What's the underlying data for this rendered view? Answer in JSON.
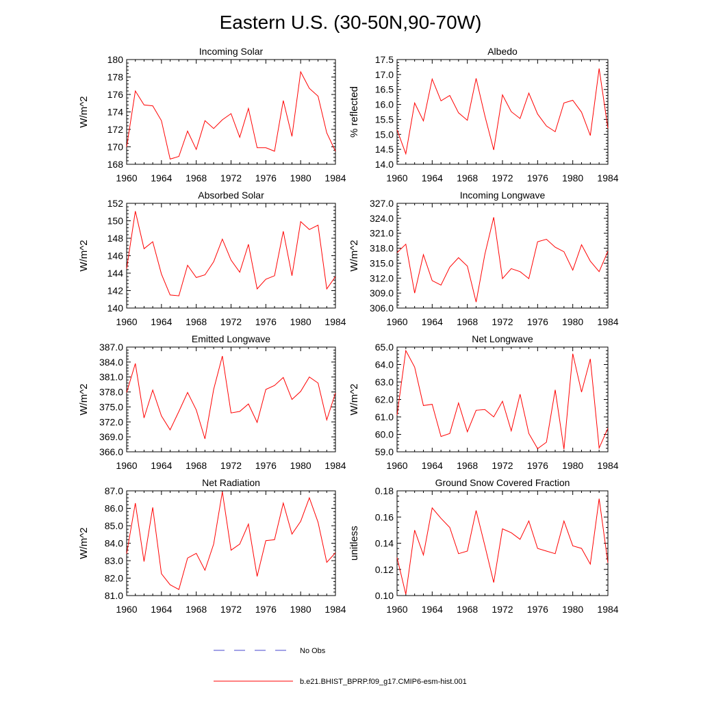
{
  "page_title": "Eastern U.S. (30-50N,90-70W)",
  "colors": {
    "series": "#ff0000",
    "obs": "#4444cc",
    "axis": "#000000"
  },
  "chart_data": [
    {
      "type": "line",
      "title": "Incoming Solar",
      "xlabel": "",
      "ylabel": "W/m^2",
      "xlim": [
        1960,
        1984
      ],
      "ylim": [
        168,
        180
      ],
      "x_ticks": [
        "1960",
        "1964",
        "1968",
        "1972",
        "1976",
        "1980",
        "1984"
      ],
      "y_ticks": [
        "168",
        "170",
        "172",
        "174",
        "176",
        "178",
        "180"
      ],
      "x": [
        1960,
        1961,
        1962,
        1963,
        1964,
        1965,
        1966,
        1967,
        1968,
        1969,
        1970,
        1971,
        1972,
        1973,
        1974,
        1975,
        1976,
        1977,
        1978,
        1979,
        1980,
        1981,
        1982,
        1983,
        1984
      ],
      "values": [
        170.0,
        176.4,
        174.8,
        174.7,
        173.0,
        168.6,
        168.9,
        171.8,
        169.7,
        173.0,
        172.1,
        173.1,
        173.8,
        171.1,
        174.4,
        169.9,
        169.9,
        169.5,
        175.3,
        171.2,
        178.6,
        176.7,
        175.8,
        171.6,
        169.5
      ]
    },
    {
      "type": "line",
      "title": "Albedo",
      "xlabel": "",
      "ylabel": "% reflected",
      "xlim": [
        1960,
        1984
      ],
      "ylim": [
        14.0,
        17.5
      ],
      "x_ticks": [
        "1960",
        "1964",
        "1968",
        "1972",
        "1976",
        "1980",
        "1984"
      ],
      "y_ticks": [
        "14.0",
        "14.5",
        "15.0",
        "15.5",
        "16.0",
        "16.5",
        "17.0",
        "17.5"
      ],
      "x": [
        1960,
        1961,
        1962,
        1963,
        1964,
        1965,
        1966,
        1967,
        1968,
        1969,
        1970,
        1971,
        1972,
        1973,
        1974,
        1975,
        1976,
        1977,
        1978,
        1979,
        1980,
        1981,
        1982,
        1983,
        1984
      ],
      "values": [
        15.15,
        14.35,
        16.05,
        15.45,
        16.85,
        16.12,
        16.3,
        15.72,
        15.47,
        16.87,
        15.62,
        14.48,
        16.32,
        15.76,
        15.53,
        16.38,
        15.68,
        15.28,
        15.09,
        16.05,
        16.14,
        15.74,
        14.96,
        17.2,
        15.2
      ]
    },
    {
      "type": "line",
      "title": "Absorbed Solar",
      "xlabel": "",
      "ylabel": "W/m^2",
      "xlim": [
        1960,
        1984
      ],
      "ylim": [
        140,
        152
      ],
      "x_ticks": [
        "1960",
        "1964",
        "1968",
        "1972",
        "1976",
        "1980",
        "1984"
      ],
      "y_ticks": [
        "140",
        "142",
        "144",
        "146",
        "148",
        "150",
        "152"
      ],
      "x": [
        1960,
        1961,
        1962,
        1963,
        1964,
        1965,
        1966,
        1967,
        1968,
        1969,
        1970,
        1971,
        1972,
        1973,
        1974,
        1975,
        1976,
        1977,
        1978,
        1979,
        1980,
        1981,
        1982,
        1983,
        1984
      ],
      "values": [
        144.5,
        151.1,
        146.8,
        147.6,
        143.9,
        141.5,
        141.4,
        144.9,
        143.5,
        143.8,
        145.3,
        147.9,
        145.5,
        144.1,
        147.3,
        142.2,
        143.3,
        143.7,
        148.8,
        143.7,
        149.9,
        149.0,
        149.5,
        142.2,
        143.6
      ]
    },
    {
      "type": "line",
      "title": "Incoming Longwave",
      "xlabel": "",
      "ylabel": "W/m^2",
      "xlim": [
        1960,
        1984
      ],
      "ylim": [
        306.0,
        327.0
      ],
      "x_ticks": [
        "1960",
        "1964",
        "1968",
        "1972",
        "1976",
        "1980",
        "1984"
      ],
      "y_ticks": [
        "306.0",
        "309.0",
        "312.0",
        "315.0",
        "318.0",
        "321.0",
        "324.0",
        "327.0"
      ],
      "x": [
        1960,
        1961,
        1962,
        1963,
        1964,
        1965,
        1966,
        1967,
        1968,
        1969,
        1970,
        1971,
        1972,
        1973,
        1974,
        1975,
        1976,
        1977,
        1978,
        1979,
        1980,
        1981,
        1982,
        1983,
        1984
      ],
      "values": [
        317.1,
        318.8,
        309.0,
        316.7,
        311.5,
        310.6,
        314.2,
        316.1,
        314.4,
        307.2,
        316.8,
        324.2,
        311.9,
        313.9,
        313.3,
        311.9,
        319.3,
        319.8,
        318.2,
        317.3,
        313.6,
        318.7,
        315.4,
        313.3,
        317.4
      ]
    },
    {
      "type": "line",
      "title": "Emitted Longwave",
      "xlabel": "",
      "ylabel": "W/m^2",
      "xlim": [
        1960,
        1984
      ],
      "ylim": [
        366.0,
        387.0
      ],
      "x_ticks": [
        "1960",
        "1964",
        "1968",
        "1972",
        "1976",
        "1980",
        "1984"
      ],
      "y_ticks": [
        "366.0",
        "369.0",
        "372.0",
        "375.0",
        "378.0",
        "381.0",
        "384.0",
        "387.0"
      ],
      "x": [
        1960,
        1961,
        1962,
        1963,
        1964,
        1965,
        1966,
        1967,
        1968,
        1969,
        1970,
        1971,
        1972,
        1973,
        1974,
        1975,
        1976,
        1977,
        1978,
        1979,
        1980,
        1981,
        1982,
        1983,
        1984
      ],
      "values": [
        377.9,
        383.7,
        372.8,
        378.4,
        373.2,
        370.4,
        374.1,
        377.9,
        374.4,
        368.6,
        378.5,
        385.2,
        373.8,
        374.1,
        375.6,
        371.9,
        378.5,
        379.3,
        380.9,
        376.5,
        378.1,
        381.0,
        379.8,
        372.4,
        377.8
      ]
    },
    {
      "type": "line",
      "title": "Net Longwave",
      "xlabel": "",
      "ylabel": "W/m^2",
      "xlim": [
        1960,
        1984
      ],
      "ylim": [
        59.0,
        65.0
      ],
      "x_ticks": [
        "1960",
        "1964",
        "1968",
        "1972",
        "1976",
        "1980",
        "1984"
      ],
      "y_ticks": [
        "59.0",
        "60.0",
        "61.0",
        "62.0",
        "63.0",
        "64.0",
        "65.0"
      ],
      "x": [
        1960,
        1961,
        1962,
        1963,
        1964,
        1965,
        1966,
        1967,
        1968,
        1969,
        1970,
        1971,
        1972,
        1973,
        1974,
        1975,
        1976,
        1977,
        1978,
        1979,
        1980,
        1981,
        1982,
        1983,
        1984
      ],
      "values": [
        61.1,
        64.8,
        63.85,
        61.65,
        61.72,
        59.88,
        60.05,
        61.8,
        60.15,
        61.38,
        61.42,
        61.0,
        61.9,
        60.2,
        62.3,
        60.05,
        59.18,
        59.55,
        62.55,
        59.15,
        64.62,
        62.42,
        64.32,
        59.22,
        60.35
      ]
    },
    {
      "type": "line",
      "title": "Net Radiation",
      "xlabel": "",
      "ylabel": "W/m^2",
      "xlim": [
        1960,
        1984
      ],
      "ylim": [
        81.0,
        87.0
      ],
      "x_ticks": [
        "1960",
        "1964",
        "1968",
        "1972",
        "1976",
        "1980",
        "1984"
      ],
      "y_ticks": [
        "81.0",
        "82.0",
        "83.0",
        "84.0",
        "85.0",
        "86.0",
        "87.0"
      ],
      "x": [
        1960,
        1961,
        1962,
        1963,
        1964,
        1965,
        1966,
        1967,
        1968,
        1969,
        1970,
        1971,
        1972,
        1973,
        1974,
        1975,
        1976,
        1977,
        1978,
        1979,
        1980,
        1981,
        1982,
        1983,
        1984
      ],
      "values": [
        83.4,
        86.3,
        82.95,
        86.05,
        82.25,
        81.62,
        81.35,
        83.15,
        83.42,
        82.45,
        83.95,
        86.95,
        83.6,
        83.95,
        85.1,
        82.1,
        84.15,
        84.2,
        86.3,
        84.52,
        85.25,
        86.6,
        85.2,
        82.9,
        83.45
      ]
    },
    {
      "type": "line",
      "title": "Ground Snow Covered Fraction",
      "xlabel": "",
      "ylabel": "unitless",
      "xlim": [
        1960,
        1984
      ],
      "ylim": [
        0.1,
        0.18
      ],
      "x_ticks": [
        "1960",
        "1964",
        "1968",
        "1972",
        "1976",
        "1980",
        "1984"
      ],
      "y_ticks": [
        "0.10",
        "0.12",
        "0.14",
        "0.16",
        "0.18"
      ],
      "x": [
        1960,
        1961,
        1962,
        1963,
        1964,
        1965,
        1966,
        1967,
        1968,
        1969,
        1970,
        1971,
        1972,
        1973,
        1974,
        1975,
        1976,
        1977,
        1978,
        1979,
        1980,
        1981,
        1982,
        1983,
        1984
      ],
      "values": [
        0.129,
        0.101,
        0.15,
        0.131,
        0.167,
        0.159,
        0.152,
        0.132,
        0.134,
        0.165,
        0.138,
        0.11,
        0.151,
        0.148,
        0.143,
        0.157,
        0.136,
        0.134,
        0.132,
        0.157,
        0.138,
        0.136,
        0.124,
        0.174,
        0.125
      ]
    }
  ],
  "legend": {
    "entries": [
      {
        "label": "No Obs",
        "style": "dashed"
      },
      {
        "label": "b.e21.BHIST_BPRP.f09_g17.CMIP6-esm-hist.001",
        "style": "solid"
      }
    ]
  }
}
